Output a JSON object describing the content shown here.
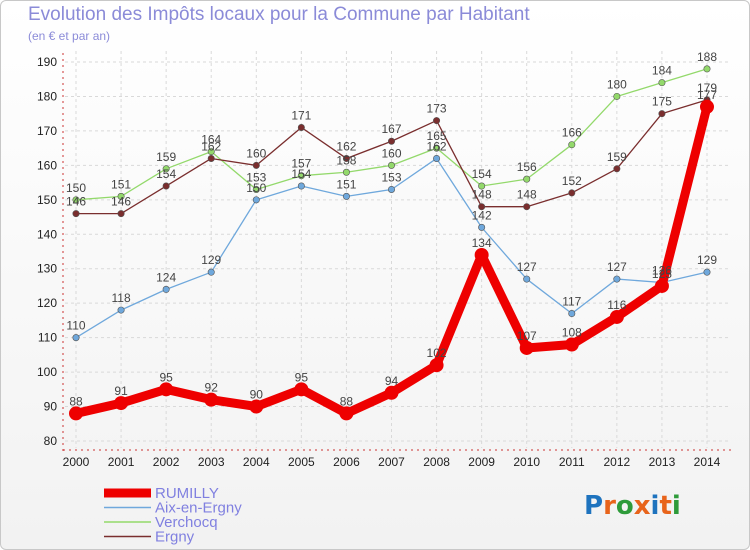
{
  "header": {
    "title": "Evolution des Impôts locaux pour la Commune par Habitant",
    "subtitle": "(en € et par an)"
  },
  "logo": {
    "text": "Proxiti",
    "letter_colors": [
      "#1e73be",
      "#e8641b",
      "#2e9b3a",
      "#e8641b",
      "#1e73be",
      "#e8641b",
      "#2e9b3a"
    ]
  },
  "chart_data": {
    "type": "line",
    "x": [
      "2000",
      "2001",
      "2002",
      "2003",
      "2004",
      "2005",
      "2006",
      "2007",
      "2008",
      "2009",
      "2010",
      "2011",
      "2012",
      "2013",
      "2014"
    ],
    "ylim": [
      80,
      190
    ],
    "yticks": [
      "80",
      "90",
      "100",
      "110",
      "120",
      "130",
      "140",
      "150",
      "160",
      "170",
      "180",
      "190"
    ],
    "grid": true,
    "legend_position": "bottom-left",
    "series": [
      {
        "name": "RUMILLY",
        "color": "#ee0000",
        "highlight": true,
        "values": [
          88,
          91,
          95,
          92,
          90,
          95,
          88,
          94,
          102,
          134,
          107,
          108,
          116,
          125,
          177
        ],
        "labels": [
          "88",
          "91",
          "95",
          "92",
          "90",
          "95",
          "88",
          "94",
          "102",
          "134",
          "107",
          "108",
          "116",
          "125",
          "177"
        ]
      },
      {
        "name": "Aix-en-Ergny",
        "color": "#6fa8dc",
        "highlight": false,
        "values": [
          110,
          118,
          124,
          129,
          150,
          154,
          151,
          153,
          162,
          142,
          127,
          117,
          127,
          126,
          129
        ],
        "labels": [
          "110",
          "118",
          "124",
          "129",
          "150",
          "154",
          "151",
          "153",
          "162",
          "142",
          "127",
          "117",
          "127",
          "126",
          "129"
        ]
      },
      {
        "name": "Verchocq",
        "color": "#93d96b",
        "highlight": false,
        "values": [
          150,
          151,
          159,
          164,
          153,
          157,
          158,
          160,
          165,
          154,
          156,
          166,
          180,
          184,
          188
        ],
        "labels": [
          "150",
          "151",
          "159",
          "164",
          "153",
          "157",
          "158",
          "160",
          "165",
          "154",
          "156",
          "166",
          "180",
          "184",
          "188"
        ]
      },
      {
        "name": "Ergny",
        "color": "#7a2e2e",
        "highlight": false,
        "values": [
          146,
          146,
          154,
          162,
          160,
          171,
          162,
          167,
          173,
          148,
          148,
          152,
          159,
          175,
          179
        ],
        "labels": [
          "146",
          "146",
          "154",
          "162",
          "160",
          "171",
          "162",
          "167",
          "173",
          "148",
          "148",
          "152",
          "159",
          "175",
          "179"
        ]
      }
    ]
  }
}
